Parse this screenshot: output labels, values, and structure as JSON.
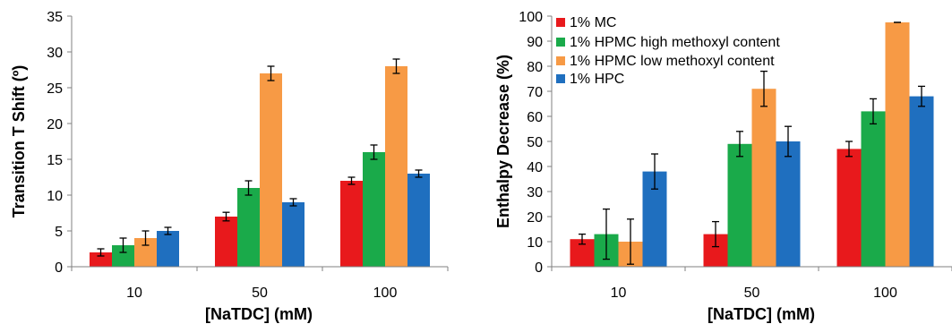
{
  "colors": {
    "mc": "#e8191c",
    "hpmc_high": "#1aaa4a",
    "hpmc_low": "#f79a45",
    "hpc": "#1f6fbf",
    "axis": "#808080"
  },
  "chart_data": [
    {
      "type": "bar",
      "categories": [
        "10",
        "50",
        "100"
      ],
      "xlabel": "[NaTDC] (mM)",
      "ylabel": "Transition T Shift (º)",
      "ylim": [
        0,
        35
      ],
      "yticks": [
        0,
        5,
        10,
        15,
        20,
        25,
        30,
        35
      ],
      "grid": false,
      "legend": "none",
      "series": [
        {
          "name": "1% MC",
          "color_key": "mc",
          "values": [
            2,
            7,
            12
          ],
          "errors": [
            0.5,
            0.6,
            0.5
          ]
        },
        {
          "name": "1% HPMC high methoxyl content",
          "color_key": "hpmc_high",
          "values": [
            3,
            11,
            16
          ],
          "errors": [
            1,
            1,
            1
          ]
        },
        {
          "name": "1% HPMC low methoxyl content",
          "color_key": "hpmc_low",
          "values": [
            4,
            27,
            28
          ],
          "errors": [
            1,
            1,
            1
          ]
        },
        {
          "name": "1% HPC",
          "color_key": "hpc",
          "values": [
            5,
            9,
            13
          ],
          "errors": [
            0.5,
            0.5,
            0.5
          ]
        }
      ]
    },
    {
      "type": "bar",
      "categories": [
        "10",
        "50",
        "100"
      ],
      "xlabel": "[NaTDC] (mM)",
      "ylabel": "Enthalpy Decrease (%)",
      "ylim": [
        0,
        100
      ],
      "yticks": [
        0,
        10,
        20,
        30,
        40,
        50,
        60,
        70,
        80,
        90,
        100
      ],
      "grid": false,
      "legend": "top-left",
      "series": [
        {
          "name": "1% MC",
          "color_key": "mc",
          "values": [
            11,
            13,
            47
          ],
          "errors": [
            2,
            5,
            3
          ]
        },
        {
          "name": "1% HPMC high methoxyl content",
          "color_key": "hpmc_high",
          "values": [
            13,
            49,
            62
          ],
          "errors": [
            10,
            5,
            5
          ]
        },
        {
          "name": "1% HPMC low methoxyl content",
          "color_key": "hpmc_low",
          "values": [
            10,
            71,
            97.5
          ],
          "errors": [
            9,
            7,
            0
          ]
        },
        {
          "name": "1% HPC",
          "color_key": "hpc",
          "values": [
            38,
            50,
            68
          ],
          "errors": [
            7,
            6,
            4
          ]
        }
      ]
    }
  ]
}
